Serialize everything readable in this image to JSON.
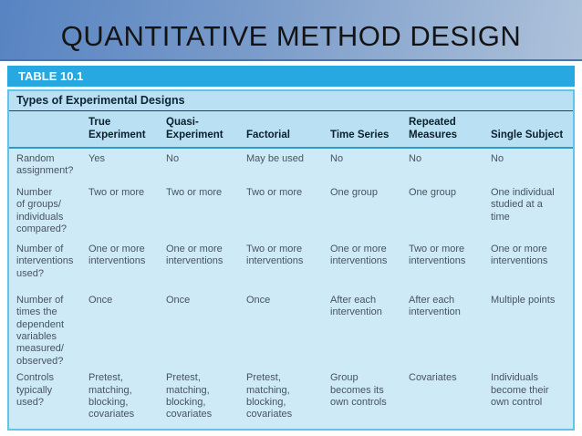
{
  "slide": {
    "title": "QUANTITATIVE METHOD DESIGN"
  },
  "table": {
    "label": "TABLE 10.1",
    "caption": "Types of Experimental Designs",
    "columns": [
      "",
      "True\nExperiment",
      "Quasi-\nExperiment",
      "Factorial",
      "Time Series",
      "Repeated\nMeasures",
      "Single Subject"
    ],
    "rows": [
      {
        "header": "Random\nassignment?",
        "cells": [
          "Yes",
          "No",
          "May be used",
          "No",
          "No",
          "No"
        ]
      },
      {
        "header": "Number\nof groups/\nindividuals\ncompared?",
        "cells": [
          "Two or more",
          "Two or more",
          "Two or more",
          "One group",
          "One group",
          "One individual\nstudied at a\ntime"
        ]
      },
      {
        "header": "Number of\ninterventions\nused?",
        "cells": [
          "One or more\ninterventions",
          "One or more\ninterventions",
          "Two or more\ninterventions",
          "One or more\ninterventions",
          "Two or more\ninterventions",
          "One or more\ninterventions"
        ]
      },
      {
        "header": "Number of\ntimes the\ndependent\nvariables\nmeasured/\nobserved?",
        "cells": [
          "Once",
          "Once",
          "Once",
          "After each\nintervention",
          "After each\nintervention",
          "Multiple points"
        ]
      },
      {
        "header": "Controls\ntypically\nused?",
        "cells": [
          "Pretest,\nmatching,\nblocking,\ncovariates",
          "Pretest,\nmatching,\nblocking,\ncovariates",
          "Pretest,\nmatching,\nblocking,\ncovariates",
          "Group\nbecomes its\nown controls",
          "Covariates",
          "Individuals\nbecome their\nown control"
        ]
      }
    ],
    "colors": {
      "label_bar": "#28a8e1",
      "header_band": "#b9e1f3",
      "body_background": "#cfeaf7",
      "frame_border": "#5fc5e8",
      "title_gradient_start": "#5784c2",
      "title_gradient_end": "#aec2da"
    }
  }
}
